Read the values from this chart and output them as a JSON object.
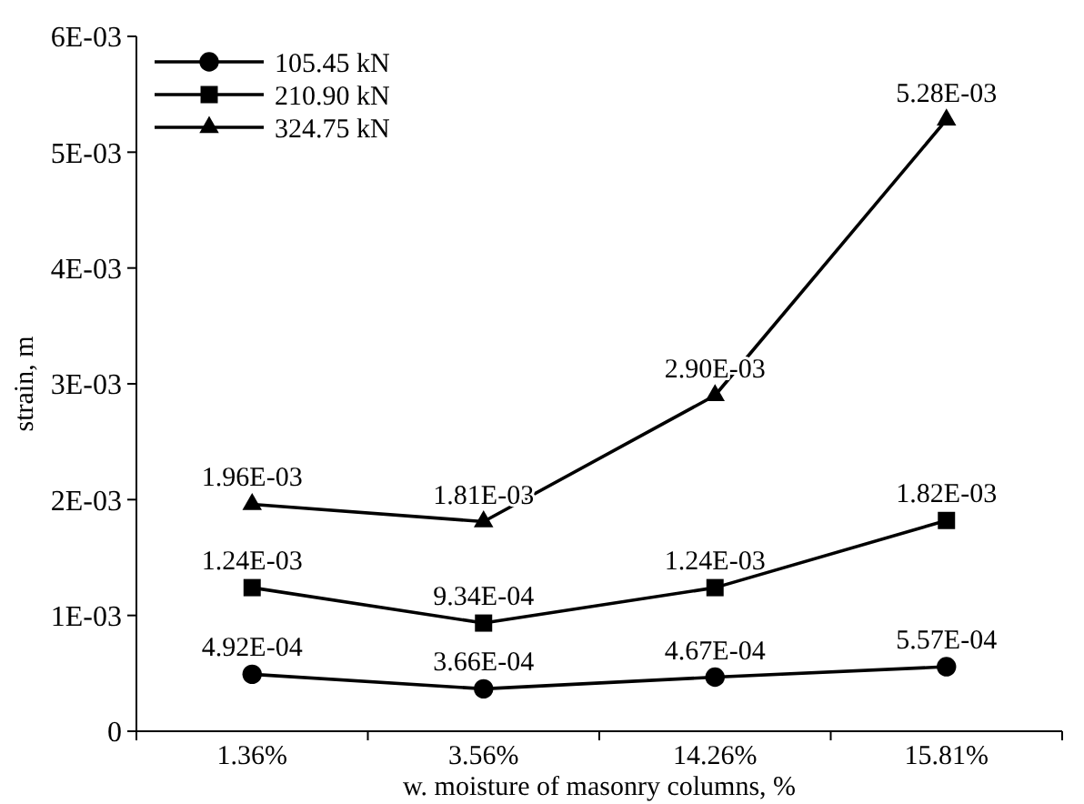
{
  "chart_data": {
    "type": "line",
    "xlabel": "w. moisture of masonry columns, %",
    "ylabel": "strain, m",
    "categories": [
      "1.36%",
      "3.56%",
      "14.26%",
      "15.81%"
    ],
    "ylim": [
      0,
      0.006
    ],
    "yticks": [
      {
        "value": 0,
        "label": "0"
      },
      {
        "value": 0.001,
        "label": "1E-03"
      },
      {
        "value": 0.002,
        "label": "2E-03"
      },
      {
        "value": 0.003,
        "label": "3E-03"
      },
      {
        "value": 0.004,
        "label": "4E-03"
      },
      {
        "value": 0.005,
        "label": "5E-03"
      },
      {
        "value": 0.006,
        "label": "6E-03"
      }
    ],
    "legend": "top left",
    "grid": false,
    "line_style": "solid",
    "series": [
      {
        "name": "105.45 kN",
        "color": "#000000",
        "marker": "circle",
        "values": [
          0.000492,
          0.000366,
          0.000467,
          0.000557
        ],
        "value_labels": [
          "4.92E-04",
          "3.66E-04",
          "4.67E-04",
          "5.57E-04"
        ]
      },
      {
        "name": "210.90 kN",
        "color": "#000000",
        "marker": "square",
        "values": [
          0.00124,
          0.000934,
          0.00124,
          0.00182
        ],
        "value_labels": [
          "1.24E-03",
          "9.34E-04",
          "1.24E-03",
          "1.82E-03"
        ]
      },
      {
        "name": "324.75 kN",
        "color": "#000000",
        "marker": "triangle",
        "values": [
          0.00196,
          0.00181,
          0.0029,
          0.00528
        ],
        "value_labels": [
          "1.96E-03",
          "1.81E-03",
          "2.90E-03",
          "5.28E-03"
        ]
      }
    ]
  }
}
